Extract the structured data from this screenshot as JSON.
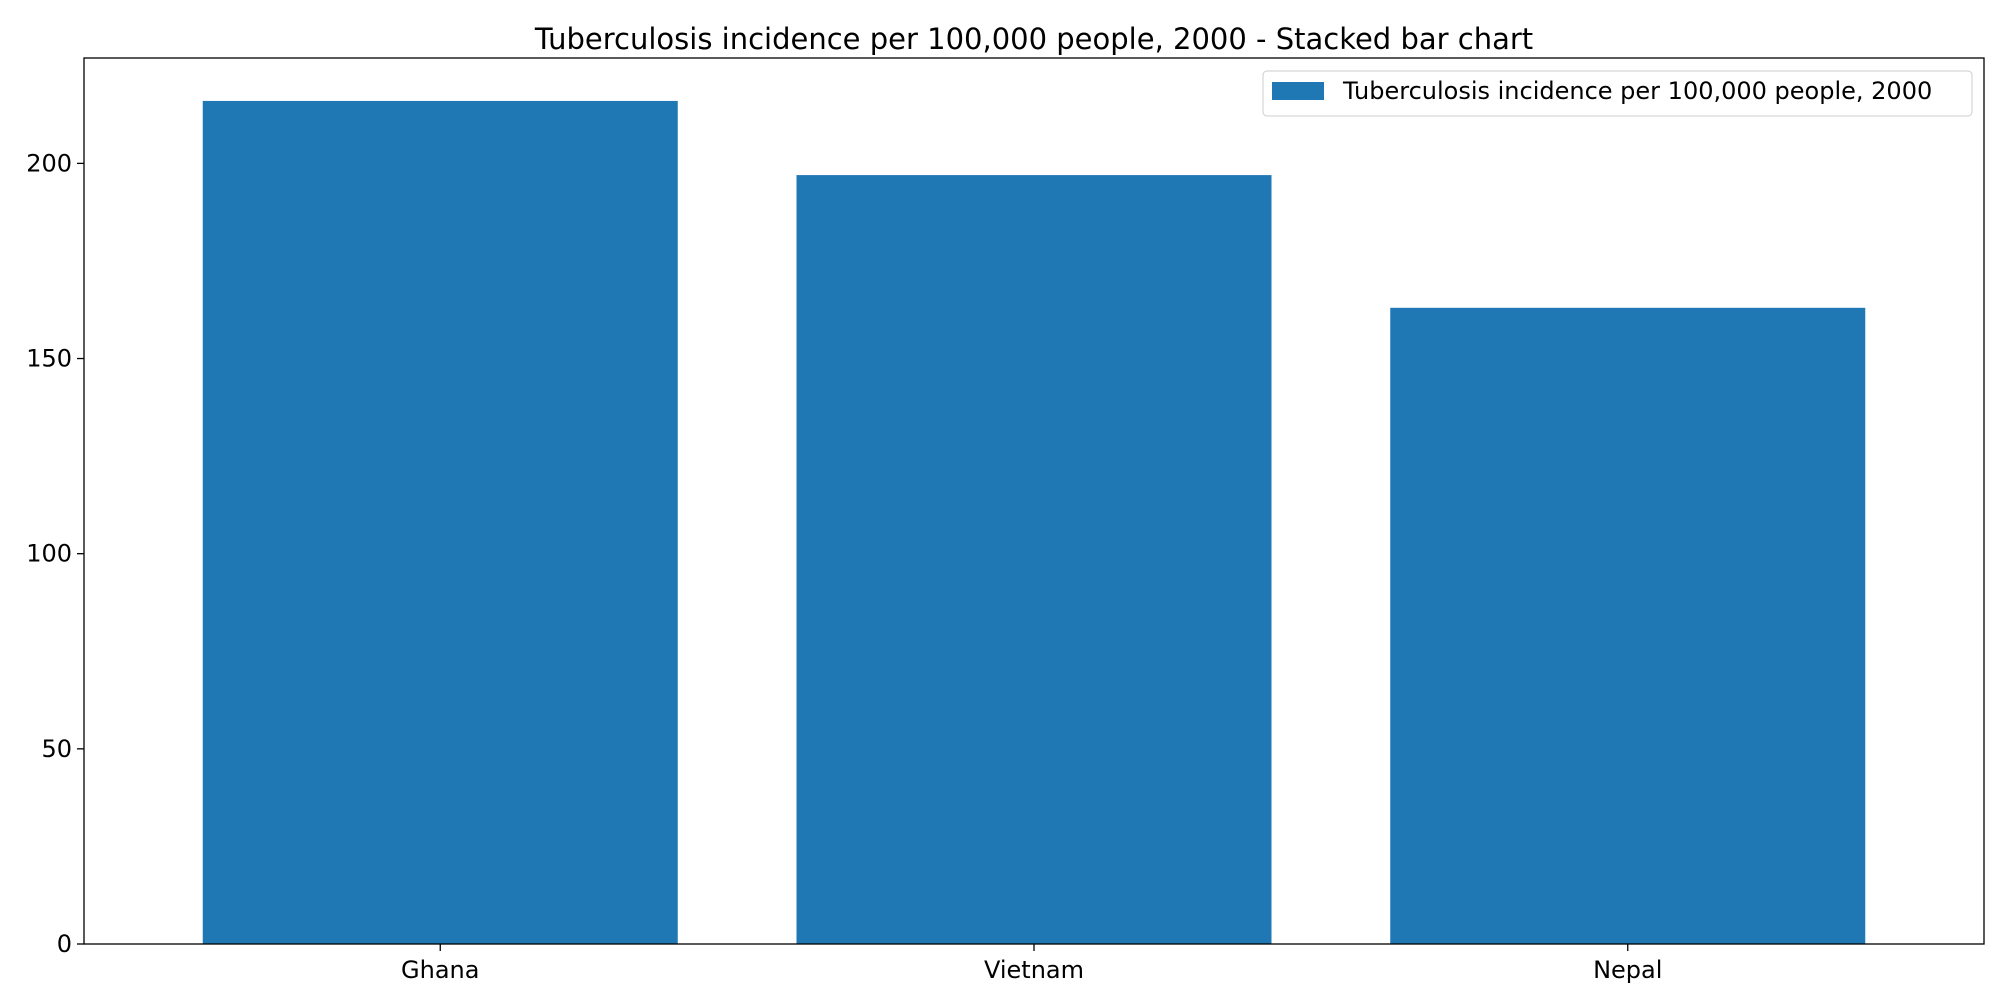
{
  "chart_data": {
    "type": "bar",
    "title": "Tuberculosis incidence per 100,000 people, 2000 - Stacked bar chart",
    "categories": [
      "Ghana",
      "Vietnam",
      "Nepal"
    ],
    "series": [
      {
        "name": "Tuberculosis incidence per 100,000 people, 2000",
        "values": [
          216,
          197,
          163
        ],
        "color": "#1f77b4"
      }
    ],
    "ylim": [
      0,
      227
    ],
    "yticks": [
      0,
      50,
      100,
      150,
      200
    ],
    "grid": false,
    "legend_position": "top-right"
  }
}
